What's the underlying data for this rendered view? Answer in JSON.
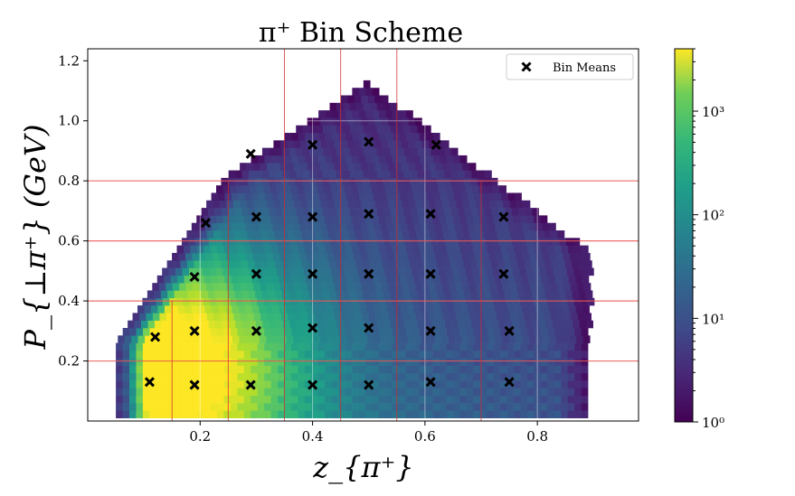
{
  "chart_data": {
    "type": "heatmap",
    "title": "π⁺ Bin Scheme",
    "xlabel": "z_{π⁺}",
    "ylabel": "P_{⊥π⁺} (GeV)",
    "xlim": [
      0.0,
      0.98
    ],
    "ylim": [
      0.0,
      1.24
    ],
    "xticks": [
      0.2,
      0.4,
      0.6,
      0.8
    ],
    "xtick_labels": [
      "0.2",
      "0.4",
      "0.6",
      "0.8"
    ],
    "yticks": [
      0.2,
      0.4,
      0.6,
      0.8,
      1.0,
      1.2
    ],
    "ytick_labels": [
      "0.2",
      "0.4",
      "0.6",
      "0.8",
      "1.0",
      "1.2"
    ],
    "colorbar": {
      "scale": "log",
      "range": [
        1,
        4000
      ],
      "ticks": [
        1,
        10,
        100,
        1000
      ],
      "tick_labels": [
        "10⁰",
        "10¹",
        "10²",
        "10³"
      ],
      "colormap": "viridis"
    },
    "grid": true,
    "legend": {
      "position": "top-right",
      "entries": [
        "Bin Means"
      ]
    },
    "bin_edges": {
      "horizontal_pt": [
        0.2,
        0.4,
        0.6,
        0.8
      ],
      "vertical_z_by_pt_range": [
        {
          "pt_range": [
            0.0,
            0.4
          ],
          "z": [
            0.15,
            0.25,
            0.35,
            0.45,
            0.55,
            0.7
          ]
        },
        {
          "pt_range": [
            0.4,
            0.8
          ],
          "z": [
            0.25,
            0.35,
            0.45,
            0.55,
            0.7
          ]
        },
        {
          "pt_range": [
            0.8,
            1.24
          ],
          "z": [
            0.35,
            0.45,
            0.55
          ]
        }
      ]
    },
    "bin_means": {
      "name": "Bin Means",
      "x": [
        0.11,
        0.19,
        0.29,
        0.4,
        0.5,
        0.61,
        0.75,
        0.12,
        0.19,
        0.3,
        0.4,
        0.5,
        0.61,
        0.75,
        0.19,
        0.3,
        0.4,
        0.5,
        0.61,
        0.74,
        0.21,
        0.3,
        0.4,
        0.5,
        0.61,
        0.74,
        0.29,
        0.4,
        0.5,
        0.62
      ],
      "y": [
        0.13,
        0.12,
        0.12,
        0.12,
        0.12,
        0.13,
        0.13,
        0.28,
        0.3,
        0.3,
        0.31,
        0.31,
        0.3,
        0.3,
        0.48,
        0.49,
        0.49,
        0.49,
        0.49,
        0.49,
        0.66,
        0.68,
        0.68,
        0.69,
        0.69,
        0.68,
        0.89,
        0.92,
        0.93,
        0.92
      ]
    }
  }
}
